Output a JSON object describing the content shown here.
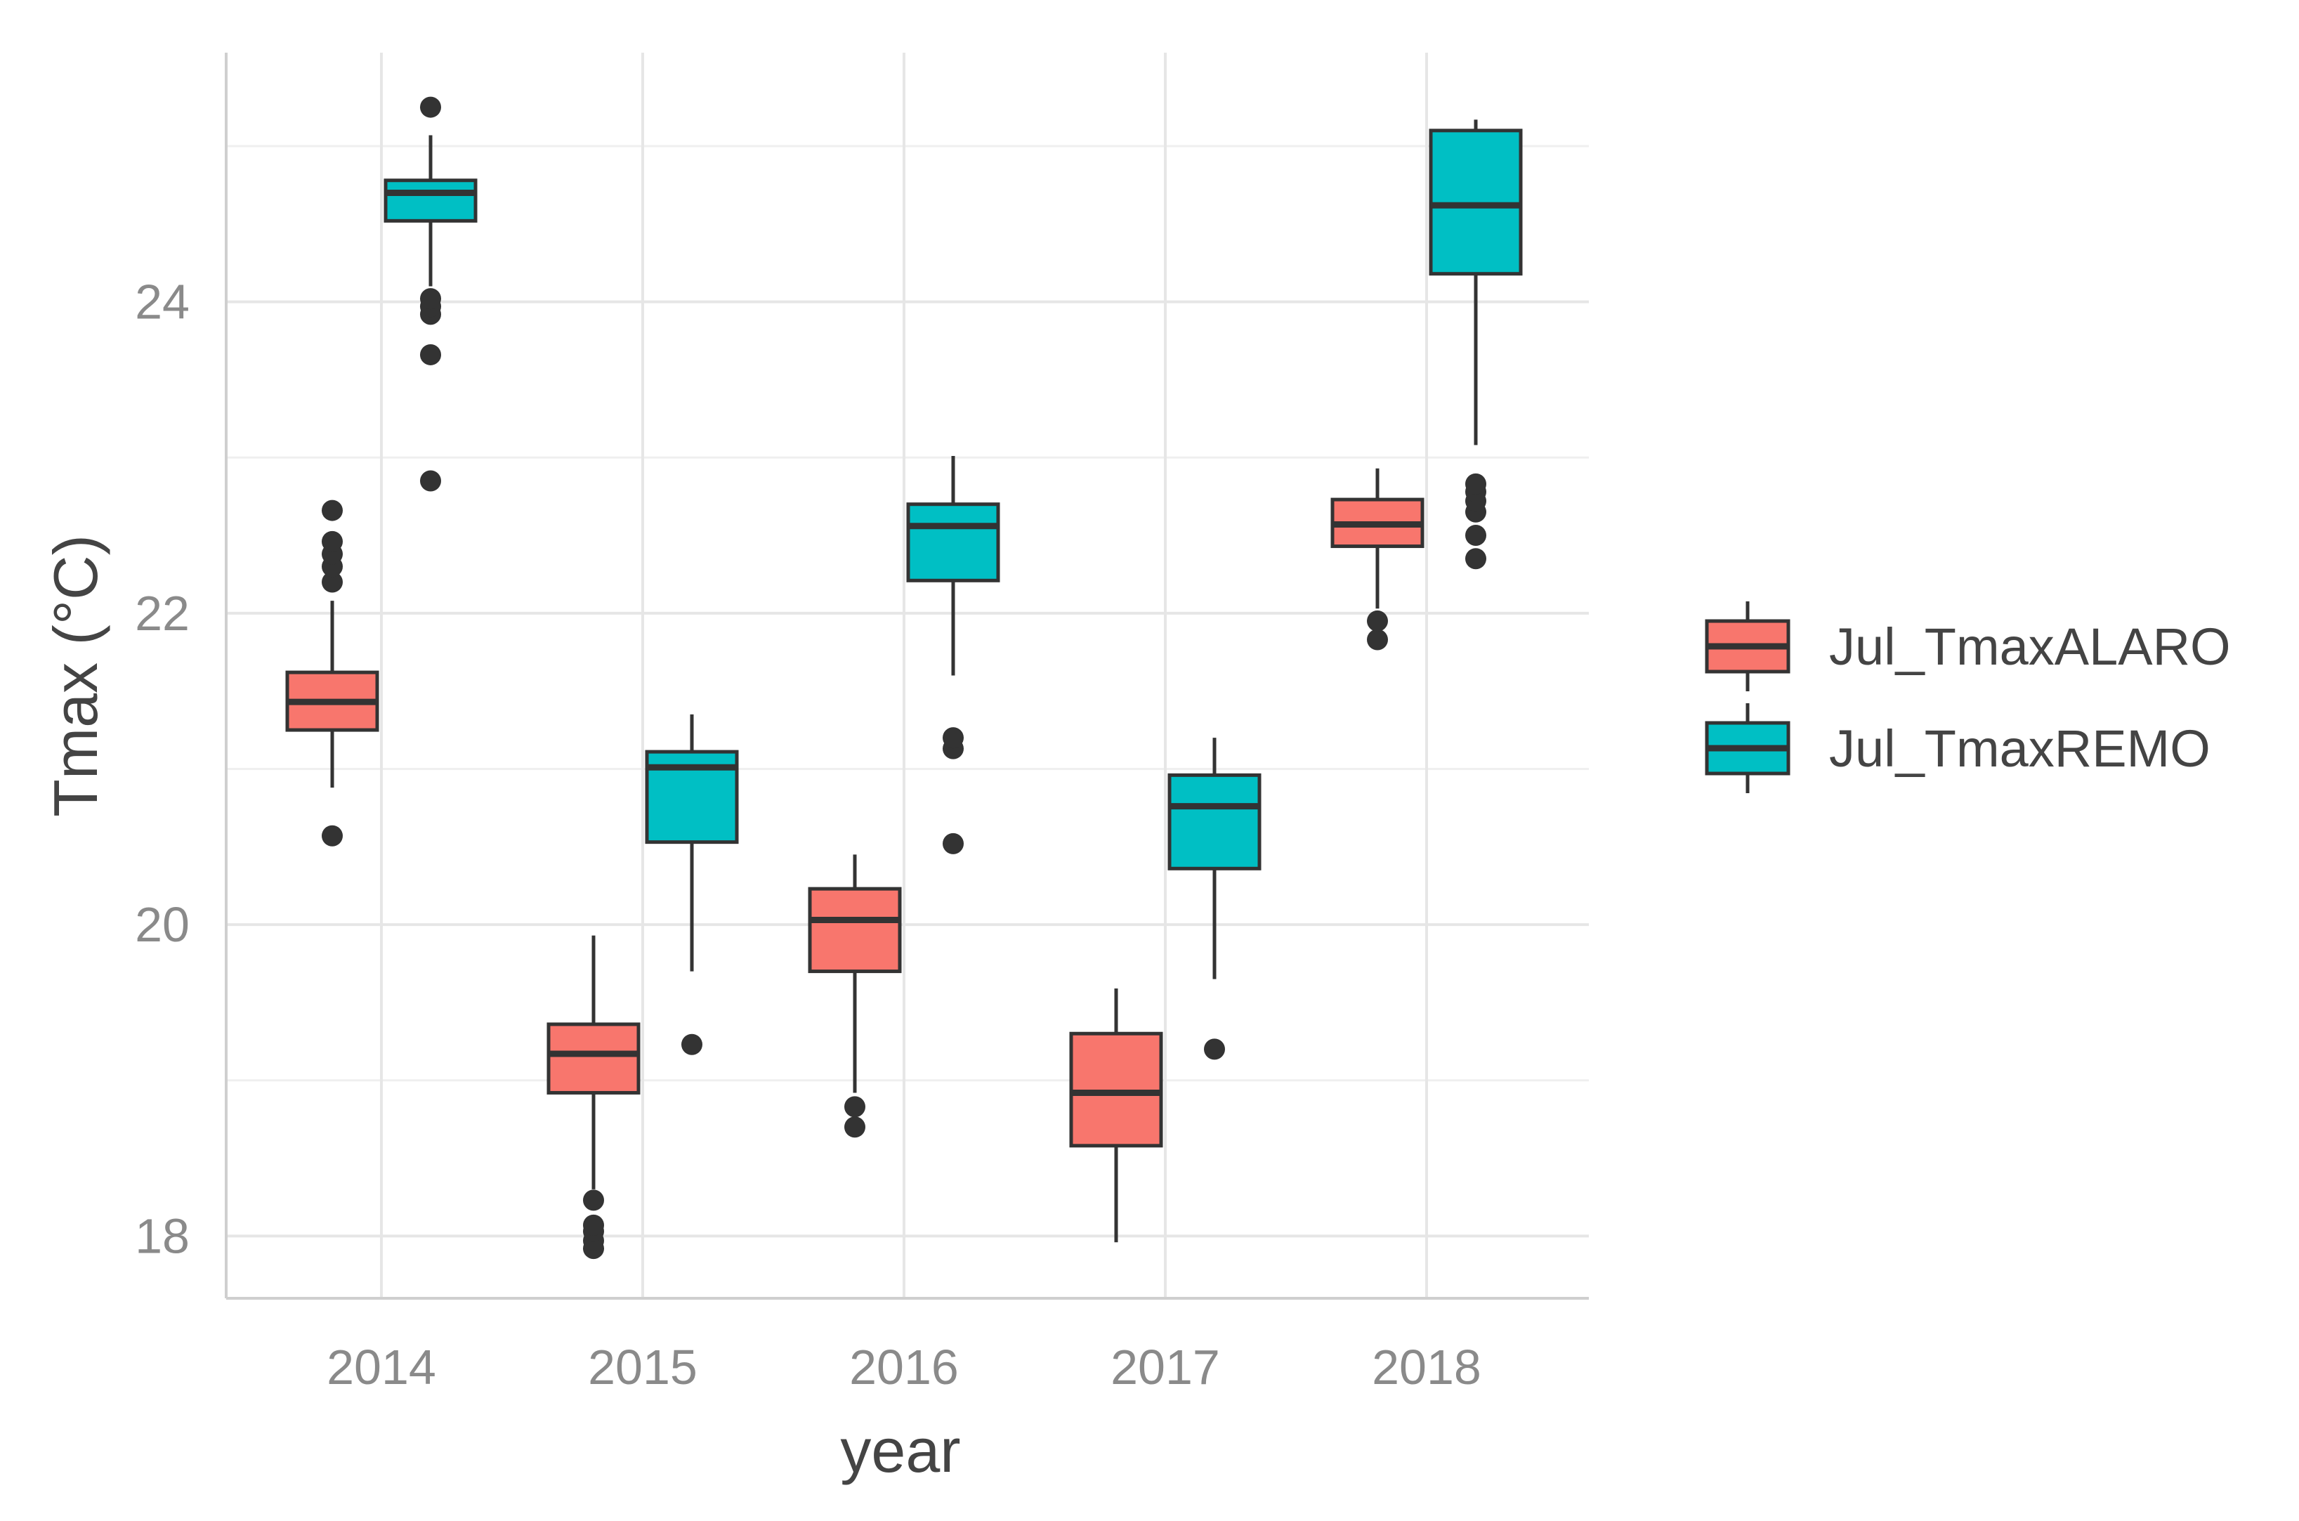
{
  "chart_data": {
    "type": "boxplot",
    "xlabel": "year",
    "ylabel": "Tmax (°C)",
    "ylim": [
      17.6,
      25.6
    ],
    "yticks": [
      18,
      20,
      22,
      24
    ],
    "categories": [
      "2014",
      "2015",
      "2016",
      "2017",
      "2018"
    ],
    "legend_position": "right",
    "series": [
      {
        "name": "Jul_TmaxALARO",
        "color": "#F8766D",
        "boxes": [
          {
            "q1": 21.25,
            "median": 21.43,
            "q3": 21.62,
            "whisker_low": 20.88,
            "whisker_high": 22.08,
            "outliers": [
              20.57,
              22.2,
              22.3,
              22.38,
              22.46,
              22.66
            ]
          },
          {
            "q1": 18.92,
            "median": 19.17,
            "q3": 19.36,
            "whisker_low": 18.3,
            "whisker_high": 19.93,
            "outliers": [
              17.92,
              17.97,
              18.03,
              18.07,
              18.23
            ]
          },
          {
            "q1": 19.7,
            "median": 20.03,
            "q3": 20.23,
            "whisker_low": 18.92,
            "whisker_high": 20.45,
            "outliers": [
              18.7,
              18.83
            ]
          },
          {
            "q1": 18.58,
            "median": 18.92,
            "q3": 19.3,
            "whisker_low": 17.96,
            "whisker_high": 19.59,
            "outliers": []
          },
          {
            "q1": 22.43,
            "median": 22.57,
            "q3": 22.73,
            "whisker_low": 22.03,
            "whisker_high": 22.93,
            "outliers": [
              21.83,
              21.95
            ]
          }
        ]
      },
      {
        "name": "Jul_TmaxREMO",
        "color": "#00BFC4",
        "boxes": [
          {
            "q1": 24.52,
            "median": 24.7,
            "q3": 24.78,
            "whisker_low": 24.1,
            "whisker_high": 25.07,
            "outliers": [
              22.85,
              23.66,
              23.92,
              23.97,
              24.02,
              25.25
            ]
          },
          {
            "q1": 20.53,
            "median": 21.01,
            "q3": 21.11,
            "whisker_low": 19.7,
            "whisker_high": 21.35,
            "outliers": [
              19.23
            ]
          },
          {
            "q1": 22.21,
            "median": 22.56,
            "q3": 22.7,
            "whisker_low": 21.6,
            "whisker_high": 23.01,
            "outliers": [
              20.52,
              21.13,
              21.2
            ]
          },
          {
            "q1": 20.36,
            "median": 20.76,
            "q3": 20.96,
            "whisker_low": 19.65,
            "whisker_high": 21.2,
            "outliers": [
              19.2
            ]
          },
          {
            "q1": 24.18,
            "median": 24.62,
            "q3": 25.1,
            "whisker_low": 23.08,
            "whisker_high": 25.17,
            "outliers": [
              22.35,
              22.5,
              22.65,
              22.72,
              22.78,
              22.83
            ]
          }
        ]
      }
    ]
  }
}
